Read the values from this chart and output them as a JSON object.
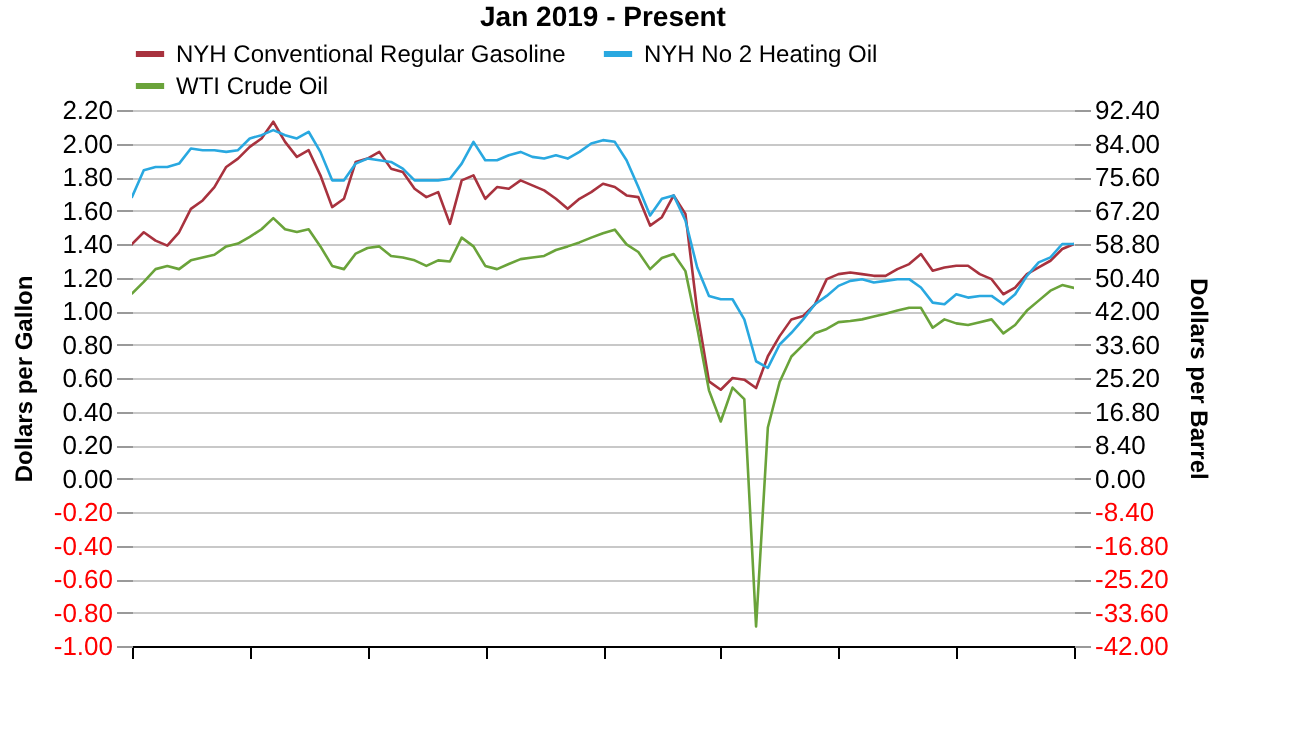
{
  "chart_data": {
    "type": "line",
    "title": "Jan 2019 - Present",
    "ylabel": "Dollars per Gallon",
    "y2label": "Dollars per Barrel",
    "categories": [
      null,
      null,
      null,
      null,
      null,
      null,
      null,
      null,
      null,
      null,
      null,
      null,
      null,
      null,
      null,
      null,
      null,
      null,
      null,
      null,
      null,
      null,
      null,
      null,
      null,
      null,
      null,
      null,
      null,
      null,
      null,
      null,
      null,
      null,
      null,
      null,
      null,
      null,
      null,
      null,
      null,
      null,
      null,
      null,
      null,
      null,
      null,
      null,
      null,
      null,
      null,
      null,
      null,
      null,
      null,
      null,
      null,
      null,
      null,
      null,
      null,
      null,
      null,
      null,
      null,
      null,
      null,
      null,
      null,
      null,
      null,
      null,
      null,
      null,
      null,
      null,
      null,
      null,
      null,
      null,
      null
    ],
    "series": [
      {
        "name": "NYH Conventional Regular Gasoline",
        "color": "#a8323e",
        "values": [
          1.4,
          1.47,
          1.42,
          1.39,
          1.47,
          1.61,
          1.66,
          1.74,
          1.86,
          1.91,
          1.98,
          2.03,
          2.13,
          2.01,
          1.92,
          1.96,
          1.81,
          1.62,
          1.67,
          1.89,
          1.91,
          1.95,
          1.85,
          1.83,
          1.73,
          1.68,
          1.71,
          1.52,
          1.78,
          1.81,
          1.67,
          1.74,
          1.73,
          1.78,
          1.75,
          1.72,
          1.67,
          1.61,
          1.67,
          1.71,
          1.76,
          1.74,
          1.69,
          1.68,
          1.51,
          1.56,
          1.69,
          1.58,
          1.0,
          0.58,
          0.53,
          0.6,
          0.59,
          0.54,
          0.73,
          0.85,
          0.95,
          0.97,
          1.04,
          1.19,
          1.22,
          1.23,
          1.22,
          1.21,
          1.21,
          1.25,
          1.28,
          1.34,
          1.24,
          1.26,
          1.27,
          1.27,
          1.22,
          1.19,
          1.1,
          1.14,
          1.22,
          1.26,
          1.3,
          1.37,
          1.4
        ]
      },
      {
        "name": "NYH No 2 Heating Oil",
        "color": "#29a8e0",
        "values": [
          1.68,
          1.84,
          1.86,
          1.86,
          1.88,
          1.97,
          1.96,
          1.96,
          1.95,
          1.96,
          2.03,
          2.05,
          2.08,
          2.05,
          2.03,
          2.07,
          1.95,
          1.78,
          1.78,
          1.88,
          1.91,
          1.9,
          1.89,
          1.85,
          1.78,
          1.78,
          1.78,
          1.79,
          1.88,
          2.01,
          1.9,
          1.9,
          1.93,
          1.95,
          1.92,
          1.91,
          1.93,
          1.91,
          1.95,
          2.0,
          2.02,
          2.01,
          1.9,
          1.74,
          1.57,
          1.67,
          1.69,
          1.54,
          1.26,
          1.09,
          1.07,
          1.07,
          0.95,
          0.7,
          0.66,
          0.8,
          0.87,
          0.95,
          1.04,
          1.09,
          1.15,
          1.18,
          1.19,
          1.17,
          1.18,
          1.19,
          1.19,
          1.14,
          1.05,
          1.04,
          1.1,
          1.08,
          1.09,
          1.09,
          1.04,
          1.1,
          1.21,
          1.29,
          1.32,
          1.4,
          1.4
        ]
      },
      {
        "name": "WTI Crude Oil",
        "color": "#6aa33a",
        "axis": "y2",
        "values": [
          46.4,
          49.3,
          52.5,
          53.3,
          52.5,
          54.7,
          55.4,
          56.1,
          58.2,
          58.9,
          60.6,
          62.5,
          65.3,
          62.5,
          61.8,
          62.5,
          58.2,
          53.3,
          52.5,
          56.4,
          57.8,
          58.2,
          55.8,
          55.4,
          54.7,
          53.3,
          54.7,
          54.4,
          60.4,
          58.2,
          53.3,
          52.5,
          53.8,
          55.0,
          55.4,
          55.8,
          57.3,
          58.2,
          59.2,
          60.4,
          61.5,
          62.4,
          58.7,
          56.8,
          52.5,
          55.3,
          56.3,
          52.0,
          37.8,
          22.1,
          14.3,
          22.8,
          19.9,
          -37.1,
          12.8,
          24.2,
          30.6,
          33.5,
          36.4,
          37.5,
          39.2,
          39.5,
          39.9,
          40.6,
          41.3,
          42.1,
          42.8,
          42.8,
          37.8,
          39.9,
          38.9,
          38.5,
          39.2,
          39.9,
          36.4,
          38.5,
          42.1,
          44.6,
          47.1,
          48.5,
          47.8
        ]
      }
    ],
    "ylim": [
      -1,
      2.2
    ],
    "yticks": [
      {
        "value": -1,
        "label": "-1.00"
      },
      {
        "value": -0.8,
        "label": "-0.80"
      },
      {
        "value": -0.6,
        "label": "-0.60"
      },
      {
        "value": -0.4,
        "label": "-0.40"
      },
      {
        "value": -0.2,
        "label": "-0.20"
      },
      {
        "value": 0,
        "label": "0.00"
      },
      {
        "value": 0.2,
        "label": "0.20"
      },
      {
        "value": 0.4,
        "label": "0.40"
      },
      {
        "value": 0.6,
        "label": "0.60"
      },
      {
        "value": 0.8,
        "label": "0.80"
      },
      {
        "value": 1,
        "label": "1.00"
      },
      {
        "value": 1.2,
        "label": "1.20"
      },
      {
        "value": 1.4,
        "label": "1.40"
      },
      {
        "value": 1.6,
        "label": "1.60"
      },
      {
        "value": 1.8,
        "label": "1.80"
      },
      {
        "value": 2,
        "label": "2.00"
      },
      {
        "value": 2.2,
        "label": "2.20"
      }
    ],
    "y2lim": [
      -42,
      92.4
    ],
    "y2ticks": [
      {
        "value": -42,
        "label": "-42.00"
      },
      {
        "value": -33.6,
        "label": "-33.60"
      },
      {
        "value": -25.2,
        "label": "-25.20"
      },
      {
        "value": -16.8,
        "label": "-16.80"
      },
      {
        "value": -8.4,
        "label": "-8.40"
      },
      {
        "value": 0,
        "label": "0.00"
      },
      {
        "value": 8.4,
        "label": "8.40"
      },
      {
        "value": 16.8,
        "label": "16.80"
      },
      {
        "value": 25.2,
        "label": "25.20"
      },
      {
        "value": 33.6,
        "label": "33.60"
      },
      {
        "value": 42,
        "label": "42.00"
      },
      {
        "value": 50.4,
        "label": "50.40"
      },
      {
        "value": 58.8,
        "label": "58.80"
      },
      {
        "value": 67.2,
        "label": "67.20"
      },
      {
        "value": 75.6,
        "label": "75.60"
      },
      {
        "value": 84,
        "label": "84.00"
      },
      {
        "value": 92.4,
        "label": "92.40"
      }
    ],
    "grid": "y",
    "legend": "top",
    "tick_labels": "y",
    "line_style": "solid",
    "marker": "none"
  }
}
